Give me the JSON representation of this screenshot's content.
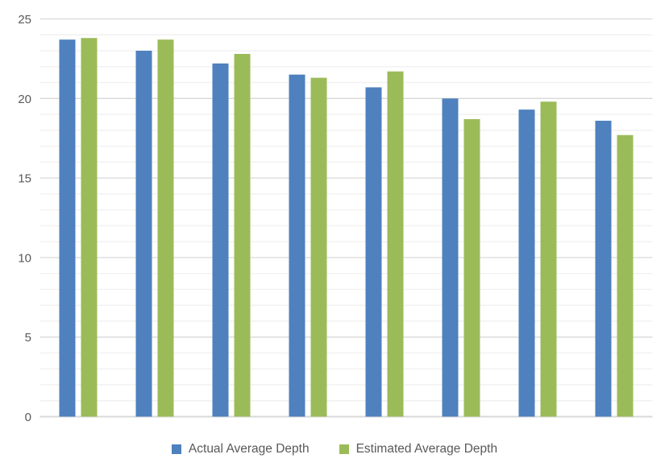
{
  "chart": {
    "background_color": "#FFFFFF",
    "text_color": "#595959",
    "gridline_major_color": "#D9D9D9",
    "gridline_minor_color": "#F1F1F1",
    "axis_line_color": "#D9D9D9"
  },
  "legend": {
    "items": [
      {
        "label": "Actual Average Depth",
        "color": "#4E81BD",
        "swatch": "square-icon"
      },
      {
        "label": "Estimated Average Depth",
        "color": "#9BBB59",
        "swatch": "square-icon"
      }
    ]
  },
  "chart_data": {
    "type": "bar",
    "title": "",
    "xlabel": "",
    "ylabel": "",
    "categories": [
      "",
      "",
      "",
      "",
      "",
      "",
      "",
      ""
    ],
    "series": [
      {
        "name": "Actual Average Depth",
        "color": "#4E81BD",
        "values": [
          23.7,
          23.0,
          22.2,
          21.5,
          20.7,
          20.0,
          19.3,
          18.6
        ]
      },
      {
        "name": "Estimated Average Depth",
        "color": "#9BBB59",
        "values": [
          23.8,
          23.7,
          22.8,
          21.3,
          21.7,
          18.7,
          19.8,
          17.7
        ]
      }
    ],
    "ylim": [
      0,
      25
    ],
    "yticks": [
      0,
      5,
      10,
      15,
      20,
      25
    ],
    "ytick_labels": [
      "0",
      "5",
      "10",
      "15",
      "20",
      "25"
    ],
    "minor_grid_unit": 1,
    "grid": true,
    "x_axis_labels_shown": false,
    "legend_position": "bottom-center"
  }
}
